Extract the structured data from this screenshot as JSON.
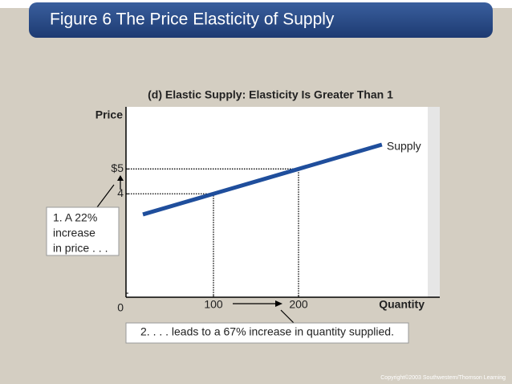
{
  "header": {
    "title": "Figure 6 The Price Elasticity of Supply"
  },
  "chart_data": {
    "type": "line",
    "subtitle": "(d) Elastic Supply: Elasticity Is Greater Than 1",
    "y_label": "Price",
    "x_label": "Quantity",
    "x": [
      17,
      100,
      200,
      298
    ],
    "series": [
      {
        "name": "Supply",
        "color": "#1f4e9c",
        "values": [
          3.17,
          4,
          5,
          5.98
        ]
      }
    ],
    "xlim": [
      0,
      365
    ],
    "ylim": [
      0,
      7.5
    ],
    "xticks": [
      100,
      200
    ],
    "yticks": [
      0,
      4,
      {
        "value": 5,
        "label": "$5"
      }
    ],
    "guides": true,
    "annotations": [
      [
        "1. A 22%",
        "increase",
        "in price . . ."
      ],
      [
        "2. . . . leads to a 67% increase in quantity supplied."
      ]
    ]
  },
  "footer": {
    "copyright": "Copyright©2003  Southwestern/Thomson Learning"
  }
}
